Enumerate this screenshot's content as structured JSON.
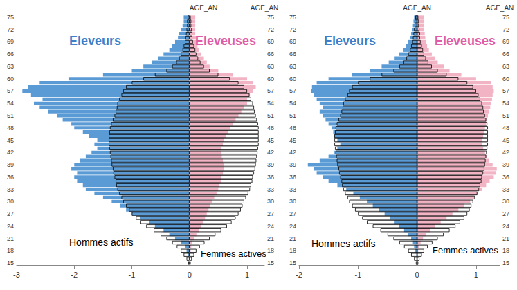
{
  "chart_data": [
    {
      "type": "bar",
      "orientation": "horizontal",
      "stacked": false,
      "ylabel": "AGE_AN",
      "categories": [
        "15",
        null,
        null,
        "18",
        null,
        null,
        "21",
        null,
        null,
        "24",
        null,
        null,
        "27",
        null,
        null,
        "30",
        null,
        null,
        "33",
        null,
        null,
        "36",
        null,
        null,
        "39",
        null,
        null,
        "42",
        null,
        null,
        "45",
        null,
        null,
        "48",
        null,
        null,
        "51",
        null,
        null,
        "54",
        null,
        null,
        "57",
        null,
        null,
        "60",
        null,
        null,
        "63",
        null,
        null,
        "66",
        null,
        null,
        "69",
        null,
        null,
        "72",
        null,
        null,
        "75"
      ],
      "xlim": [
        -3,
        1.3
      ],
      "xticks": [
        -3,
        -2,
        -1,
        0,
        1
      ],
      "series": [
        {
          "name": "Eleveurs",
          "color": "#5b9bd5",
          "values": [
            0,
            0,
            -0.02,
            -0.05,
            -0.08,
            -0.15,
            -0.25,
            -0.35,
            -0.45,
            -0.6,
            -0.7,
            -0.85,
            -1.0,
            -1.1,
            -1.2,
            -1.35,
            -1.5,
            -1.65,
            -1.8,
            -1.85,
            -1.95,
            -2.0,
            -1.95,
            -2.05,
            -2.0,
            -1.9,
            -1.8,
            -1.7,
            -1.6,
            -1.65,
            -1.6,
            -1.75,
            -1.85,
            -2.0,
            -2.05,
            -2.2,
            -2.3,
            -2.45,
            -2.6,
            -2.7,
            -2.55,
            -2.75,
            -2.9,
            -2.8,
            -2.6,
            -2.1,
            -1.5,
            -1.0,
            -0.8,
            -0.65,
            -0.55,
            -0.45,
            -0.35,
            -0.3,
            -0.25,
            -0.2,
            -0.18,
            -0.15,
            -0.12,
            -0.1,
            -0.1
          ]
        },
        {
          "name": "Eleveuses",
          "color": "#f2b3c4",
          "values": [
            0,
            0,
            0.01,
            0.02,
            0.03,
            0.05,
            0.08,
            0.12,
            0.16,
            0.2,
            0.23,
            0.27,
            0.3,
            0.33,
            0.36,
            0.4,
            0.43,
            0.47,
            0.5,
            0.52,
            0.55,
            0.55,
            0.58,
            0.6,
            0.6,
            0.58,
            0.56,
            0.55,
            0.55,
            0.58,
            0.6,
            0.63,
            0.67,
            0.7,
            0.75,
            0.8,
            0.85,
            0.9,
            0.95,
            1.0,
            1.0,
            1.05,
            1.1,
            1.15,
            1.1,
            1.0,
            0.75,
            0.5,
            0.35,
            0.3,
            0.25,
            0.2,
            0.17,
            0.14,
            0.12,
            0.11,
            0.1,
            0.1,
            0.1,
            0.1,
            0.1
          ]
        },
        {
          "name": "Hommes actifs",
          "color": "#000000",
          "line_style": "solid",
          "values": [
            -0.02,
            -0.05,
            -0.1,
            -0.15,
            -0.22,
            -0.3,
            -0.4,
            -0.5,
            -0.62,
            -0.75,
            -0.85,
            -0.93,
            -1.0,
            -1.05,
            -1.1,
            -1.15,
            -1.18,
            -1.22,
            -1.25,
            -1.27,
            -1.28,
            -1.3,
            -1.32,
            -1.33,
            -1.35,
            -1.36,
            -1.37,
            -1.38,
            -1.39,
            -1.4,
            -1.4,
            -1.4,
            -1.39,
            -1.38,
            -1.36,
            -1.33,
            -1.3,
            -1.28,
            -1.26,
            -1.25,
            -1.22,
            -1.18,
            -1.15,
            -1.1,
            -1.0,
            -0.8,
            -0.6,
            -0.4,
            -0.3,
            -0.23,
            -0.18,
            -0.15,
            -0.12,
            -0.1,
            -0.08,
            -0.07,
            -0.06,
            -0.05,
            -0.04,
            -0.04,
            -0.03
          ]
        },
        {
          "name": "Femmes actives",
          "color": "#000000",
          "line_style": "solid",
          "values": [
            0.02,
            0.04,
            0.08,
            0.12,
            0.18,
            0.26,
            0.35,
            0.45,
            0.55,
            0.65,
            0.73,
            0.8,
            0.85,
            0.89,
            0.92,
            0.95,
            0.98,
            1.02,
            1.05,
            1.07,
            1.09,
            1.1,
            1.12,
            1.14,
            1.15,
            1.16,
            1.17,
            1.18,
            1.19,
            1.2,
            1.2,
            1.2,
            1.2,
            1.2,
            1.19,
            1.17,
            1.15,
            1.13,
            1.12,
            1.1,
            1.07,
            1.04,
            1.0,
            0.95,
            0.85,
            0.7,
            0.5,
            0.35,
            0.25,
            0.19,
            0.15,
            0.12,
            0.1,
            0.08,
            0.06,
            0.05,
            0.05,
            0.04,
            0.03,
            0.03,
            0.02
          ]
        }
      ]
    },
    {
      "type": "bar",
      "orientation": "horizontal",
      "stacked": false,
      "ylabel": "AGE_AN",
      "categories": [
        "15",
        null,
        null,
        "18",
        null,
        null,
        "21",
        null,
        null,
        "24",
        null,
        null,
        "27",
        null,
        null,
        "30",
        null,
        null,
        "33",
        null,
        null,
        "36",
        null,
        null,
        "39",
        null,
        null,
        "42",
        null,
        null,
        "45",
        null,
        null,
        "48",
        null,
        null,
        "51",
        null,
        null,
        "54",
        null,
        null,
        "57",
        null,
        null,
        "60",
        null,
        null,
        "63",
        null,
        null,
        "66",
        null,
        null,
        "69",
        null,
        null,
        "72",
        null,
        null,
        "75"
      ],
      "xlim": [
        -2,
        1.4
      ],
      "xticks": [
        -2,
        -1,
        0,
        1
      ],
      "series": [
        {
          "name": "Eleveurs",
          "color": "#5b9bd5",
          "values": [
            0,
            0,
            -0.01,
            -0.03,
            -0.05,
            -0.07,
            -0.1,
            -0.15,
            -0.22,
            -0.3,
            -0.38,
            -0.46,
            -0.55,
            -0.65,
            -0.75,
            -0.85,
            -0.97,
            -1.08,
            -1.2,
            -1.35,
            -1.5,
            -1.6,
            -1.7,
            -1.75,
            -1.85,
            -1.65,
            -1.5,
            -1.4,
            -1.35,
            -1.3,
            -1.35,
            -1.4,
            -1.42,
            -1.45,
            -1.5,
            -1.55,
            -1.6,
            -1.65,
            -1.6,
            -1.65,
            -1.7,
            -1.75,
            -1.8,
            -1.78,
            -1.7,
            -1.5,
            -1.1,
            -0.8,
            -0.6,
            -0.48,
            -0.38,
            -0.3,
            -0.24,
            -0.19,
            -0.15,
            -0.12,
            -0.1,
            -0.08,
            -0.07,
            -0.06,
            -0.05
          ]
        },
        {
          "name": "Eleveuses",
          "color": "#f2b3c4",
          "values": [
            0,
            0,
            0.01,
            0.02,
            0.04,
            0.06,
            0.1,
            0.15,
            0.22,
            0.3,
            0.4,
            0.5,
            0.6,
            0.7,
            0.8,
            0.9,
            0.97,
            1.03,
            1.1,
            1.17,
            1.23,
            1.3,
            1.33,
            1.35,
            1.28,
            1.22,
            1.18,
            1.15,
            1.12,
            1.1,
            1.1,
            1.12,
            1.14,
            1.15,
            1.17,
            1.18,
            1.2,
            1.22,
            1.24,
            1.25,
            1.27,
            1.28,
            1.3,
            1.28,
            1.25,
            1.0,
            0.75,
            0.55,
            0.45,
            0.35,
            0.3,
            0.25,
            0.2,
            0.17,
            0.15,
            0.14,
            0.13,
            0.12,
            0.12,
            0.12,
            0.12
          ]
        },
        {
          "name": "Hommes actifs",
          "color": "#000000",
          "line_style": "solid",
          "values": [
            -0.02,
            -0.05,
            -0.1,
            -0.15,
            -0.22,
            -0.3,
            -0.4,
            -0.5,
            -0.62,
            -0.75,
            -0.85,
            -0.93,
            -1.0,
            -1.05,
            -1.1,
            -1.15,
            -1.18,
            -1.22,
            -1.25,
            -1.27,
            -1.28,
            -1.3,
            -1.32,
            -1.33,
            -1.35,
            -1.36,
            -1.37,
            -1.38,
            -1.39,
            -1.4,
            -1.4,
            -1.4,
            -1.39,
            -1.38,
            -1.36,
            -1.33,
            -1.3,
            -1.28,
            -1.26,
            -1.25,
            -1.22,
            -1.18,
            -1.15,
            -1.1,
            -1.0,
            -0.8,
            -0.6,
            -0.4,
            -0.3,
            -0.23,
            -0.18,
            -0.15,
            -0.12,
            -0.1,
            -0.08,
            -0.07,
            -0.06,
            -0.05,
            -0.04,
            -0.04,
            -0.03
          ]
        },
        {
          "name": "Femmes actives",
          "color": "#000000",
          "line_style": "solid",
          "values": [
            0.02,
            0.04,
            0.08,
            0.12,
            0.18,
            0.26,
            0.35,
            0.45,
            0.55,
            0.65,
            0.73,
            0.8,
            0.85,
            0.89,
            0.92,
            0.95,
            0.98,
            1.02,
            1.05,
            1.07,
            1.09,
            1.1,
            1.12,
            1.14,
            1.15,
            1.16,
            1.17,
            1.18,
            1.19,
            1.2,
            1.2,
            1.2,
            1.2,
            1.2,
            1.19,
            1.17,
            1.15,
            1.13,
            1.12,
            1.1,
            1.07,
            1.04,
            1.0,
            0.95,
            0.85,
            0.7,
            0.5,
            0.35,
            0.25,
            0.19,
            0.15,
            0.12,
            0.1,
            0.08,
            0.06,
            0.05,
            0.05,
            0.04,
            0.03,
            0.03,
            0.02
          ]
        }
      ]
    }
  ]
}
